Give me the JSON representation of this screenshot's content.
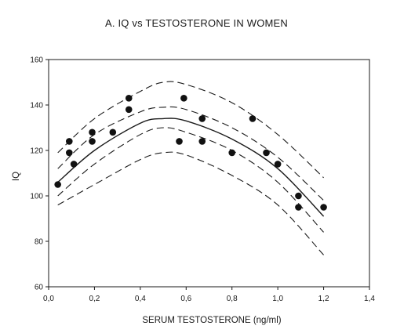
{
  "chart_data": {
    "type": "scatter",
    "title": "A. IQ vs TESTOSTERONE IN WOMEN",
    "xlabel": "SERUM TESTOSTERONE (ng/ml)",
    "ylabel": "IQ",
    "xlim": [
      0.0,
      1.4
    ],
    "ylim": [
      60,
      160
    ],
    "x_ticks": [
      "0,0",
      "0,2",
      "0,4",
      "0,6",
      "0,8",
      "1,0",
      "1,2",
      "1,4"
    ],
    "y_ticks": [
      "60",
      "80",
      "100",
      "120",
      "140",
      "160"
    ],
    "grid": false,
    "legend": "none",
    "series": [
      {
        "kind": "points",
        "points": [
          {
            "x": 0.04,
            "y": 105
          },
          {
            "x": 0.09,
            "y": 124
          },
          {
            "x": 0.09,
            "y": 119
          },
          {
            "x": 0.11,
            "y": 114
          },
          {
            "x": 0.19,
            "y": 128
          },
          {
            "x": 0.19,
            "y": 124
          },
          {
            "x": 0.28,
            "y": 128
          },
          {
            "x": 0.35,
            "y": 143
          },
          {
            "x": 0.35,
            "y": 138
          },
          {
            "x": 0.57,
            "y": 124
          },
          {
            "x": 0.59,
            "y": 143
          },
          {
            "x": 0.67,
            "y": 134
          },
          {
            "x": 0.67,
            "y": 124
          },
          {
            "x": 0.8,
            "y": 119
          },
          {
            "x": 0.89,
            "y": 134
          },
          {
            "x": 0.95,
            "y": 119
          },
          {
            "x": 1.0,
            "y": 114
          },
          {
            "x": 1.09,
            "y": 100
          },
          {
            "x": 1.09,
            "y": 95
          },
          {
            "x": 1.2,
            "y": 95
          }
        ]
      },
      {
        "kind": "fit",
        "style": "solid",
        "x": [
          0.04,
          0.2,
          0.4,
          0.5,
          0.6,
          0.8,
          1.0,
          1.2
        ],
        "y": [
          106,
          120,
          132,
          134,
          133,
          125,
          112,
          91
        ]
      },
      {
        "kind": "inner-confidence-upper",
        "style": "dashed",
        "x": [
          0.04,
          0.2,
          0.4,
          0.5,
          0.6,
          0.8,
          1.0,
          1.2
        ],
        "y": [
          112,
          127,
          137,
          139,
          138,
          130,
          117,
          98
        ]
      },
      {
        "kind": "inner-confidence-lower",
        "style": "dashed",
        "x": [
          0.04,
          0.2,
          0.4,
          0.5,
          0.6,
          0.8,
          1.0,
          1.2
        ],
        "y": [
          100,
          114,
          127,
          130,
          128,
          120,
          106,
          84
        ]
      },
      {
        "kind": "prediction-upper",
        "style": "dashed",
        "x": [
          0.04,
          0.2,
          0.4,
          0.5,
          0.6,
          0.8,
          1.0,
          1.2
        ],
        "y": [
          119,
          134,
          146,
          150,
          149,
          141,
          127,
          108
        ]
      },
      {
        "kind": "prediction-lower",
        "style": "dashed",
        "x": [
          0.04,
          0.2,
          0.4,
          0.5,
          0.6,
          0.8,
          1.0,
          1.2
        ],
        "y": [
          96,
          105,
          116,
          119,
          118,
          109,
          96,
          74
        ]
      }
    ]
  }
}
